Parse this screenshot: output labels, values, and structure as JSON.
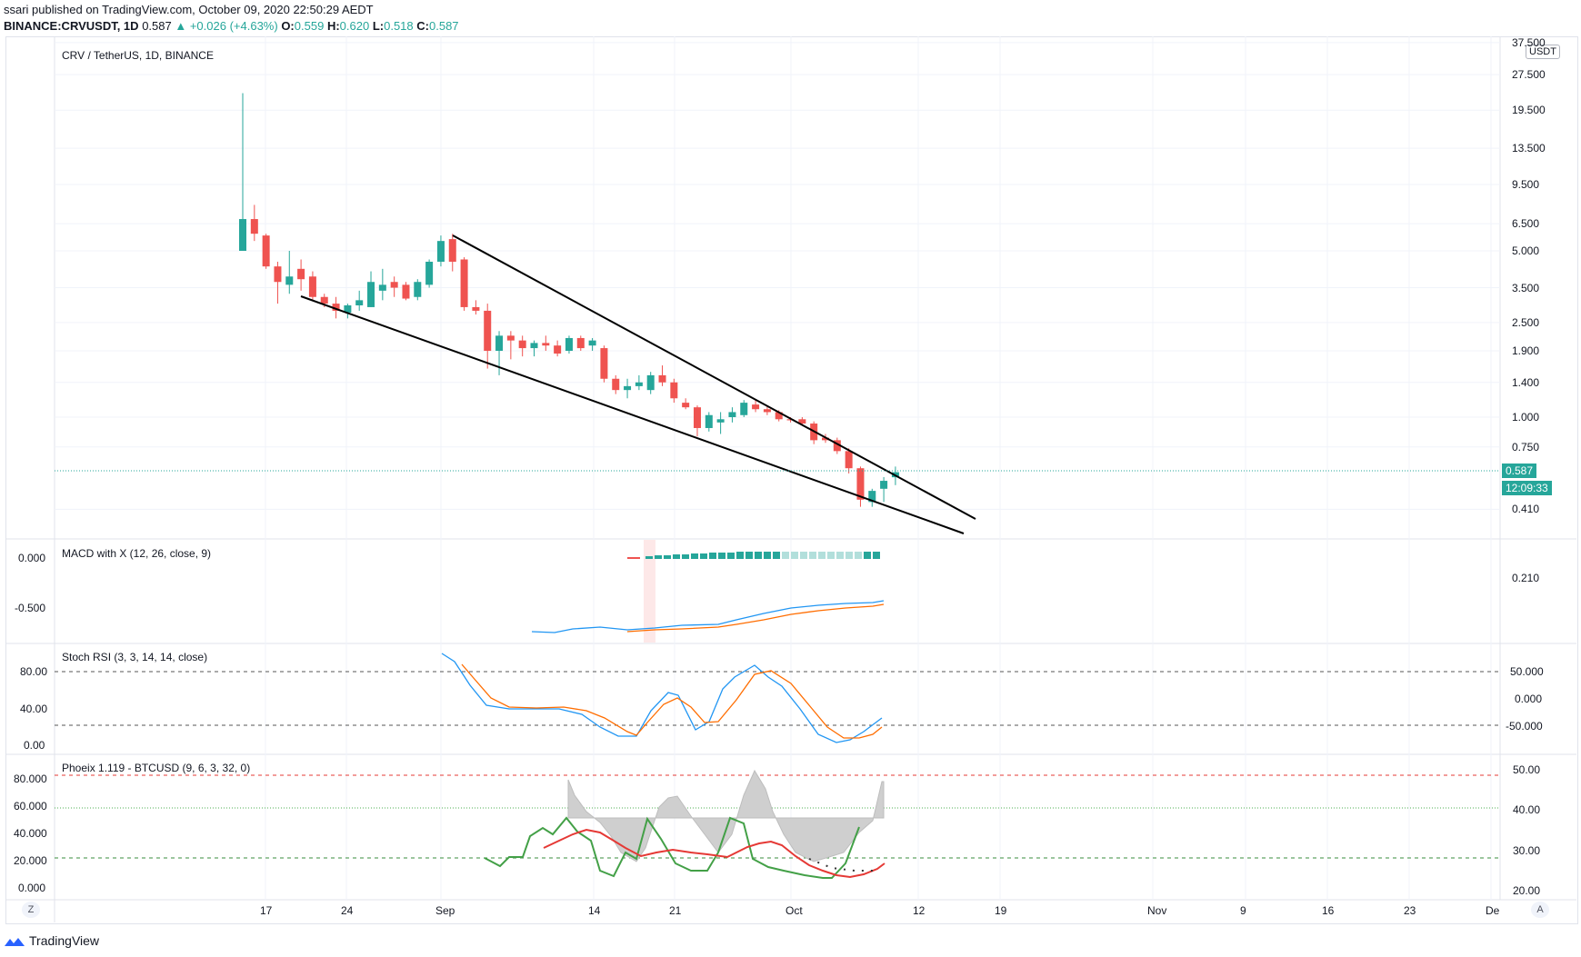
{
  "header": {
    "publish_line": "ssari published on TradingView.com, October 09, 2020 22:50:29 AEDT",
    "symbol_line": "BINANCE:CRVUSDT, 1D",
    "last": "0.587",
    "change": "▲ +0.026 (+4.63%)",
    "o_label": "O:",
    "o_val": "0.559",
    "h_label": "H:",
    "h_val": "0.620",
    "l_label": "L:",
    "l_val": "0.518",
    "c_label": "C:",
    "c_val": "0.587"
  },
  "main_pane": {
    "title": "CRV / TetherUS, 1D, BINANCE",
    "unit": "USDT",
    "price_ticks": [
      "37.500",
      "27.500",
      "19.500",
      "13.500",
      "9.500",
      "6.500",
      "5.000",
      "3.500",
      "2.500",
      "1.900",
      "1.400",
      "1.000",
      "0.750",
      "0.410",
      "0.210"
    ],
    "last_price": "0.587",
    "countdown": "12:09:33"
  },
  "macd_pane": {
    "title": "MACD with X (12, 26, close, 9)",
    "ticks": [
      "0.000",
      "-0.500"
    ]
  },
  "stoch_pane": {
    "title": "Stoch RSI (3, 3, 14, 14, close)",
    "left_ticks": [
      "80.00",
      "40.00",
      "0.00"
    ],
    "right_ticks": [
      "50.000",
      "0.000",
      "-50.000"
    ]
  },
  "phoeix_pane": {
    "title": "Phoeix 1.119 - BTCUSD (9, 6, 3, 32, 0)",
    "left_ticks": [
      "80.000",
      "60.000",
      "40.000",
      "20.000",
      "0.000"
    ],
    "right_ticks": [
      "50.00",
      "40.00",
      "30.00",
      "20.00"
    ]
  },
  "time_axis": {
    "labels": [
      "17",
      "24",
      "Sep",
      "14",
      "21",
      "Oct",
      "12",
      "19",
      "Nov",
      "9",
      "16",
      "23",
      "De"
    ]
  },
  "buttons": {
    "z": "Z",
    "a": "A"
  },
  "footer": {
    "brand": "TradingView"
  },
  "chart_data": {
    "type": "candlestick",
    "symbol": "CRV/USDT",
    "interval": "1D",
    "y_scale": "log",
    "candles": [
      {
        "o": 5.0,
        "h": 23.0,
        "l": 5.0,
        "c": 6.8
      },
      {
        "o": 6.8,
        "h": 7.8,
        "l": 5.5,
        "c": 5.9
      },
      {
        "o": 5.8,
        "h": 5.9,
        "l": 4.2,
        "c": 4.3
      },
      {
        "o": 4.3,
        "h": 4.5,
        "l": 3.0,
        "c": 3.7
      },
      {
        "o": 3.6,
        "h": 5.0,
        "l": 3.3,
        "c": 3.9
      },
      {
        "o": 4.2,
        "h": 4.6,
        "l": 3.4,
        "c": 3.8
      },
      {
        "o": 3.9,
        "h": 4.1,
        "l": 3.1,
        "c": 3.2
      },
      {
        "o": 3.2,
        "h": 3.3,
        "l": 2.9,
        "c": 3.0
      },
      {
        "o": 3.0,
        "h": 3.2,
        "l": 2.6,
        "c": 2.8
      },
      {
        "o": 2.75,
        "h": 3.0,
        "l": 2.6,
        "c": 2.95
      },
      {
        "o": 2.95,
        "h": 3.4,
        "l": 2.8,
        "c": 3.1
      },
      {
        "o": 2.9,
        "h": 4.1,
        "l": 2.9,
        "c": 3.7
      },
      {
        "o": 3.4,
        "h": 4.2,
        "l": 3.1,
        "c": 3.6
      },
      {
        "o": 3.7,
        "h": 3.9,
        "l": 3.2,
        "c": 3.5
      },
      {
        "o": 3.6,
        "h": 3.7,
        "l": 3.1,
        "c": 3.15
      },
      {
        "o": 3.2,
        "h": 3.8,
        "l": 3.1,
        "c": 3.7
      },
      {
        "o": 3.6,
        "h": 4.6,
        "l": 3.5,
        "c": 4.5
      },
      {
        "o": 4.5,
        "h": 5.8,
        "l": 4.3,
        "c": 5.5
      },
      {
        "o": 5.6,
        "h": 5.9,
        "l": 4.1,
        "c": 4.5
      },
      {
        "o": 4.6,
        "h": 4.7,
        "l": 2.8,
        "c": 2.9
      },
      {
        "o": 2.9,
        "h": 3.1,
        "l": 2.7,
        "c": 2.8
      },
      {
        "o": 2.8,
        "h": 3.0,
        "l": 1.6,
        "c": 1.9
      },
      {
        "o": 1.9,
        "h": 2.3,
        "l": 1.5,
        "c": 2.2
      },
      {
        "o": 2.2,
        "h": 2.3,
        "l": 1.75,
        "c": 2.1
      },
      {
        "o": 2.1,
        "h": 2.2,
        "l": 1.8,
        "c": 1.95
      },
      {
        "o": 1.95,
        "h": 2.1,
        "l": 1.8,
        "c": 2.05
      },
      {
        "o": 2.05,
        "h": 2.2,
        "l": 1.9,
        "c": 2.0
      },
      {
        "o": 2.0,
        "h": 2.1,
        "l": 1.8,
        "c": 1.85
      },
      {
        "o": 1.9,
        "h": 2.2,
        "l": 1.85,
        "c": 2.15
      },
      {
        "o": 2.15,
        "h": 2.2,
        "l": 1.9,
        "c": 1.95
      },
      {
        "o": 2.0,
        "h": 2.15,
        "l": 1.9,
        "c": 2.1
      },
      {
        "o": 1.95,
        "h": 2.0,
        "l": 1.4,
        "c": 1.45
      },
      {
        "o": 1.45,
        "h": 1.5,
        "l": 1.25,
        "c": 1.3
      },
      {
        "o": 1.3,
        "h": 1.45,
        "l": 1.2,
        "c": 1.35
      },
      {
        "o": 1.35,
        "h": 1.5,
        "l": 1.3,
        "c": 1.4
      },
      {
        "o": 1.3,
        "h": 1.55,
        "l": 1.25,
        "c": 1.5
      },
      {
        "o": 1.5,
        "h": 1.65,
        "l": 1.35,
        "c": 1.4
      },
      {
        "o": 1.4,
        "h": 1.45,
        "l": 1.15,
        "c": 1.2
      },
      {
        "o": 1.15,
        "h": 1.2,
        "l": 1.08,
        "c": 1.1
      },
      {
        "o": 1.1,
        "h": 1.12,
        "l": 0.83,
        "c": 0.9
      },
      {
        "o": 0.9,
        "h": 1.05,
        "l": 0.87,
        "c": 1.02
      },
      {
        "o": 0.95,
        "h": 1.05,
        "l": 0.85,
        "c": 0.98
      },
      {
        "o": 1.0,
        "h": 1.1,
        "l": 0.95,
        "c": 1.05
      },
      {
        "o": 1.02,
        "h": 1.18,
        "l": 1.0,
        "c": 1.15
      },
      {
        "o": 1.13,
        "h": 1.18,
        "l": 1.05,
        "c": 1.08
      },
      {
        "o": 1.08,
        "h": 1.12,
        "l": 1.02,
        "c": 1.05
      },
      {
        "o": 1.05,
        "h": 1.07,
        "l": 0.96,
        "c": 0.98
      },
      {
        "o": 0.98,
        "h": 1.0,
        "l": 0.95,
        "c": 0.97
      },
      {
        "o": 0.98,
        "h": 1.0,
        "l": 0.93,
        "c": 0.94
      },
      {
        "o": 0.94,
        "h": 0.96,
        "l": 0.77,
        "c": 0.8
      },
      {
        "o": 0.82,
        "h": 0.85,
        "l": 0.78,
        "c": 0.8
      },
      {
        "o": 0.8,
        "h": 0.82,
        "l": 0.7,
        "c": 0.72
      },
      {
        "o": 0.72,
        "h": 0.74,
        "l": 0.58,
        "c": 0.61
      },
      {
        "o": 0.61,
        "h": 0.62,
        "l": 0.42,
        "c": 0.45
      },
      {
        "o": 0.44,
        "h": 0.5,
        "l": 0.42,
        "c": 0.49
      },
      {
        "o": 0.5,
        "h": 0.56,
        "l": 0.44,
        "c": 0.54
      },
      {
        "o": 0.559,
        "h": 0.62,
        "l": 0.518,
        "c": 0.587
      }
    ]
  }
}
